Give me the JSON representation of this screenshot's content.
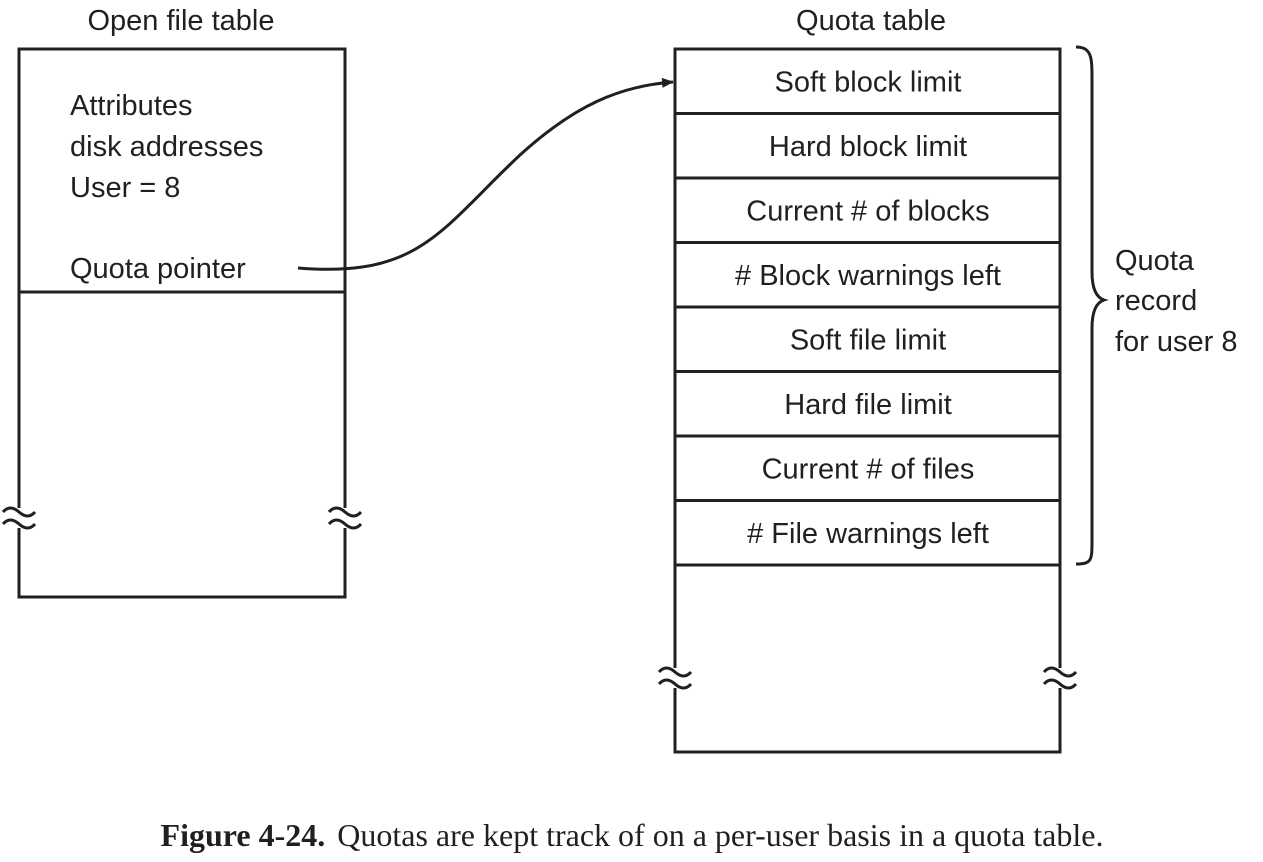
{
  "open_file_table": {
    "title": "Open file table",
    "lines": [
      "Attributes",
      "disk addresses",
      "User = 8"
    ],
    "pointer_label": "Quota pointer"
  },
  "quota_table": {
    "title": "Quota table",
    "rows": [
      "Soft block limit",
      "Hard block limit",
      "Current # of blocks",
      "# Block warnings left",
      "Soft file limit",
      "Hard file limit",
      "Current # of files",
      "# File warnings left"
    ]
  },
  "brace_label": [
    "Quota",
    "record",
    "for user 8"
  ],
  "caption": {
    "label": "Figure 4-24.",
    "text": "Quotas are kept track of on a per-user basis in a quota table."
  }
}
